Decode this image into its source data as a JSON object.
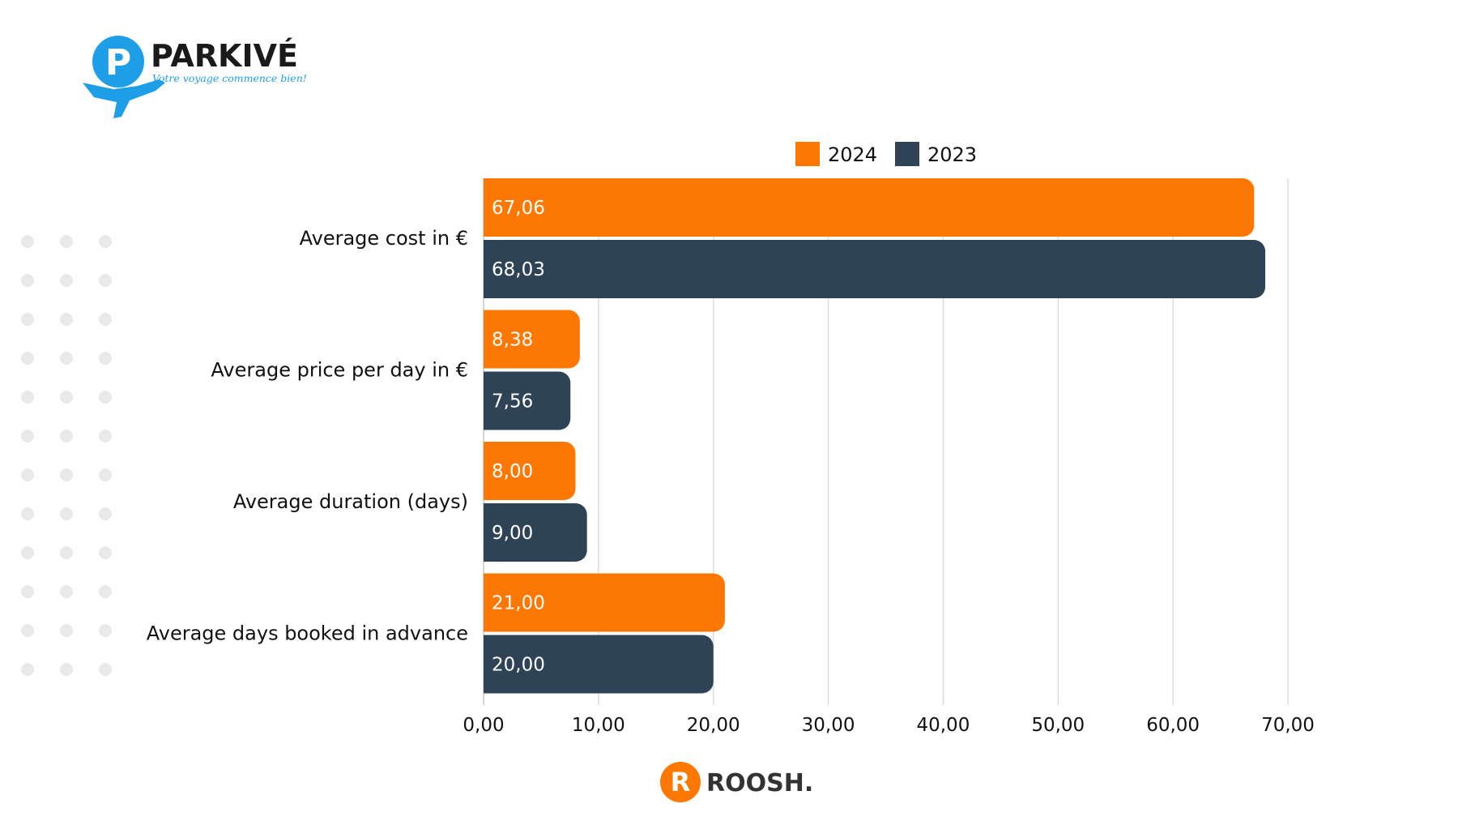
{
  "brand": {
    "parkive_name": "PARKIVÉ",
    "parkive_tagline": "Votre voyage commence bien!",
    "roosh_name": "ROOSH."
  },
  "colors": {
    "series_2024": "#fd7703",
    "series_2023": "#2e4456",
    "grid": "#dddddd",
    "dots": "#e9e9ec",
    "parkive_blue": "#1f9ee8"
  },
  "chart_data": {
    "type": "bar",
    "orientation": "horizontal",
    "categories": [
      "Average cost in €",
      "Average price per day in €",
      "Average duration (days)",
      "Average days booked in advance"
    ],
    "series": [
      {
        "name": "2024",
        "values": [
          67.06,
          8.38,
          8.0,
          21.0
        ],
        "labels": [
          "67,06",
          "8,38",
          "8,00",
          "21,00"
        ]
      },
      {
        "name": "2023",
        "values": [
          68.03,
          7.56,
          9.0,
          20.0
        ],
        "labels": [
          "68,03",
          "7,56",
          "9,00",
          "20,00"
        ]
      }
    ],
    "x_ticks": [
      {
        "value": 0,
        "label": "0,00"
      },
      {
        "value": 10,
        "label": "10,00"
      },
      {
        "value": 20,
        "label": "20,00"
      },
      {
        "value": 30,
        "label": "30,00"
      },
      {
        "value": 40,
        "label": "40,00"
      },
      {
        "value": 50,
        "label": "50,00"
      },
      {
        "value": 60,
        "label": "60,00"
      },
      {
        "value": 70,
        "label": "70,00"
      }
    ],
    "xlim": [
      0,
      70
    ],
    "grid": true,
    "legend_position": "top"
  }
}
